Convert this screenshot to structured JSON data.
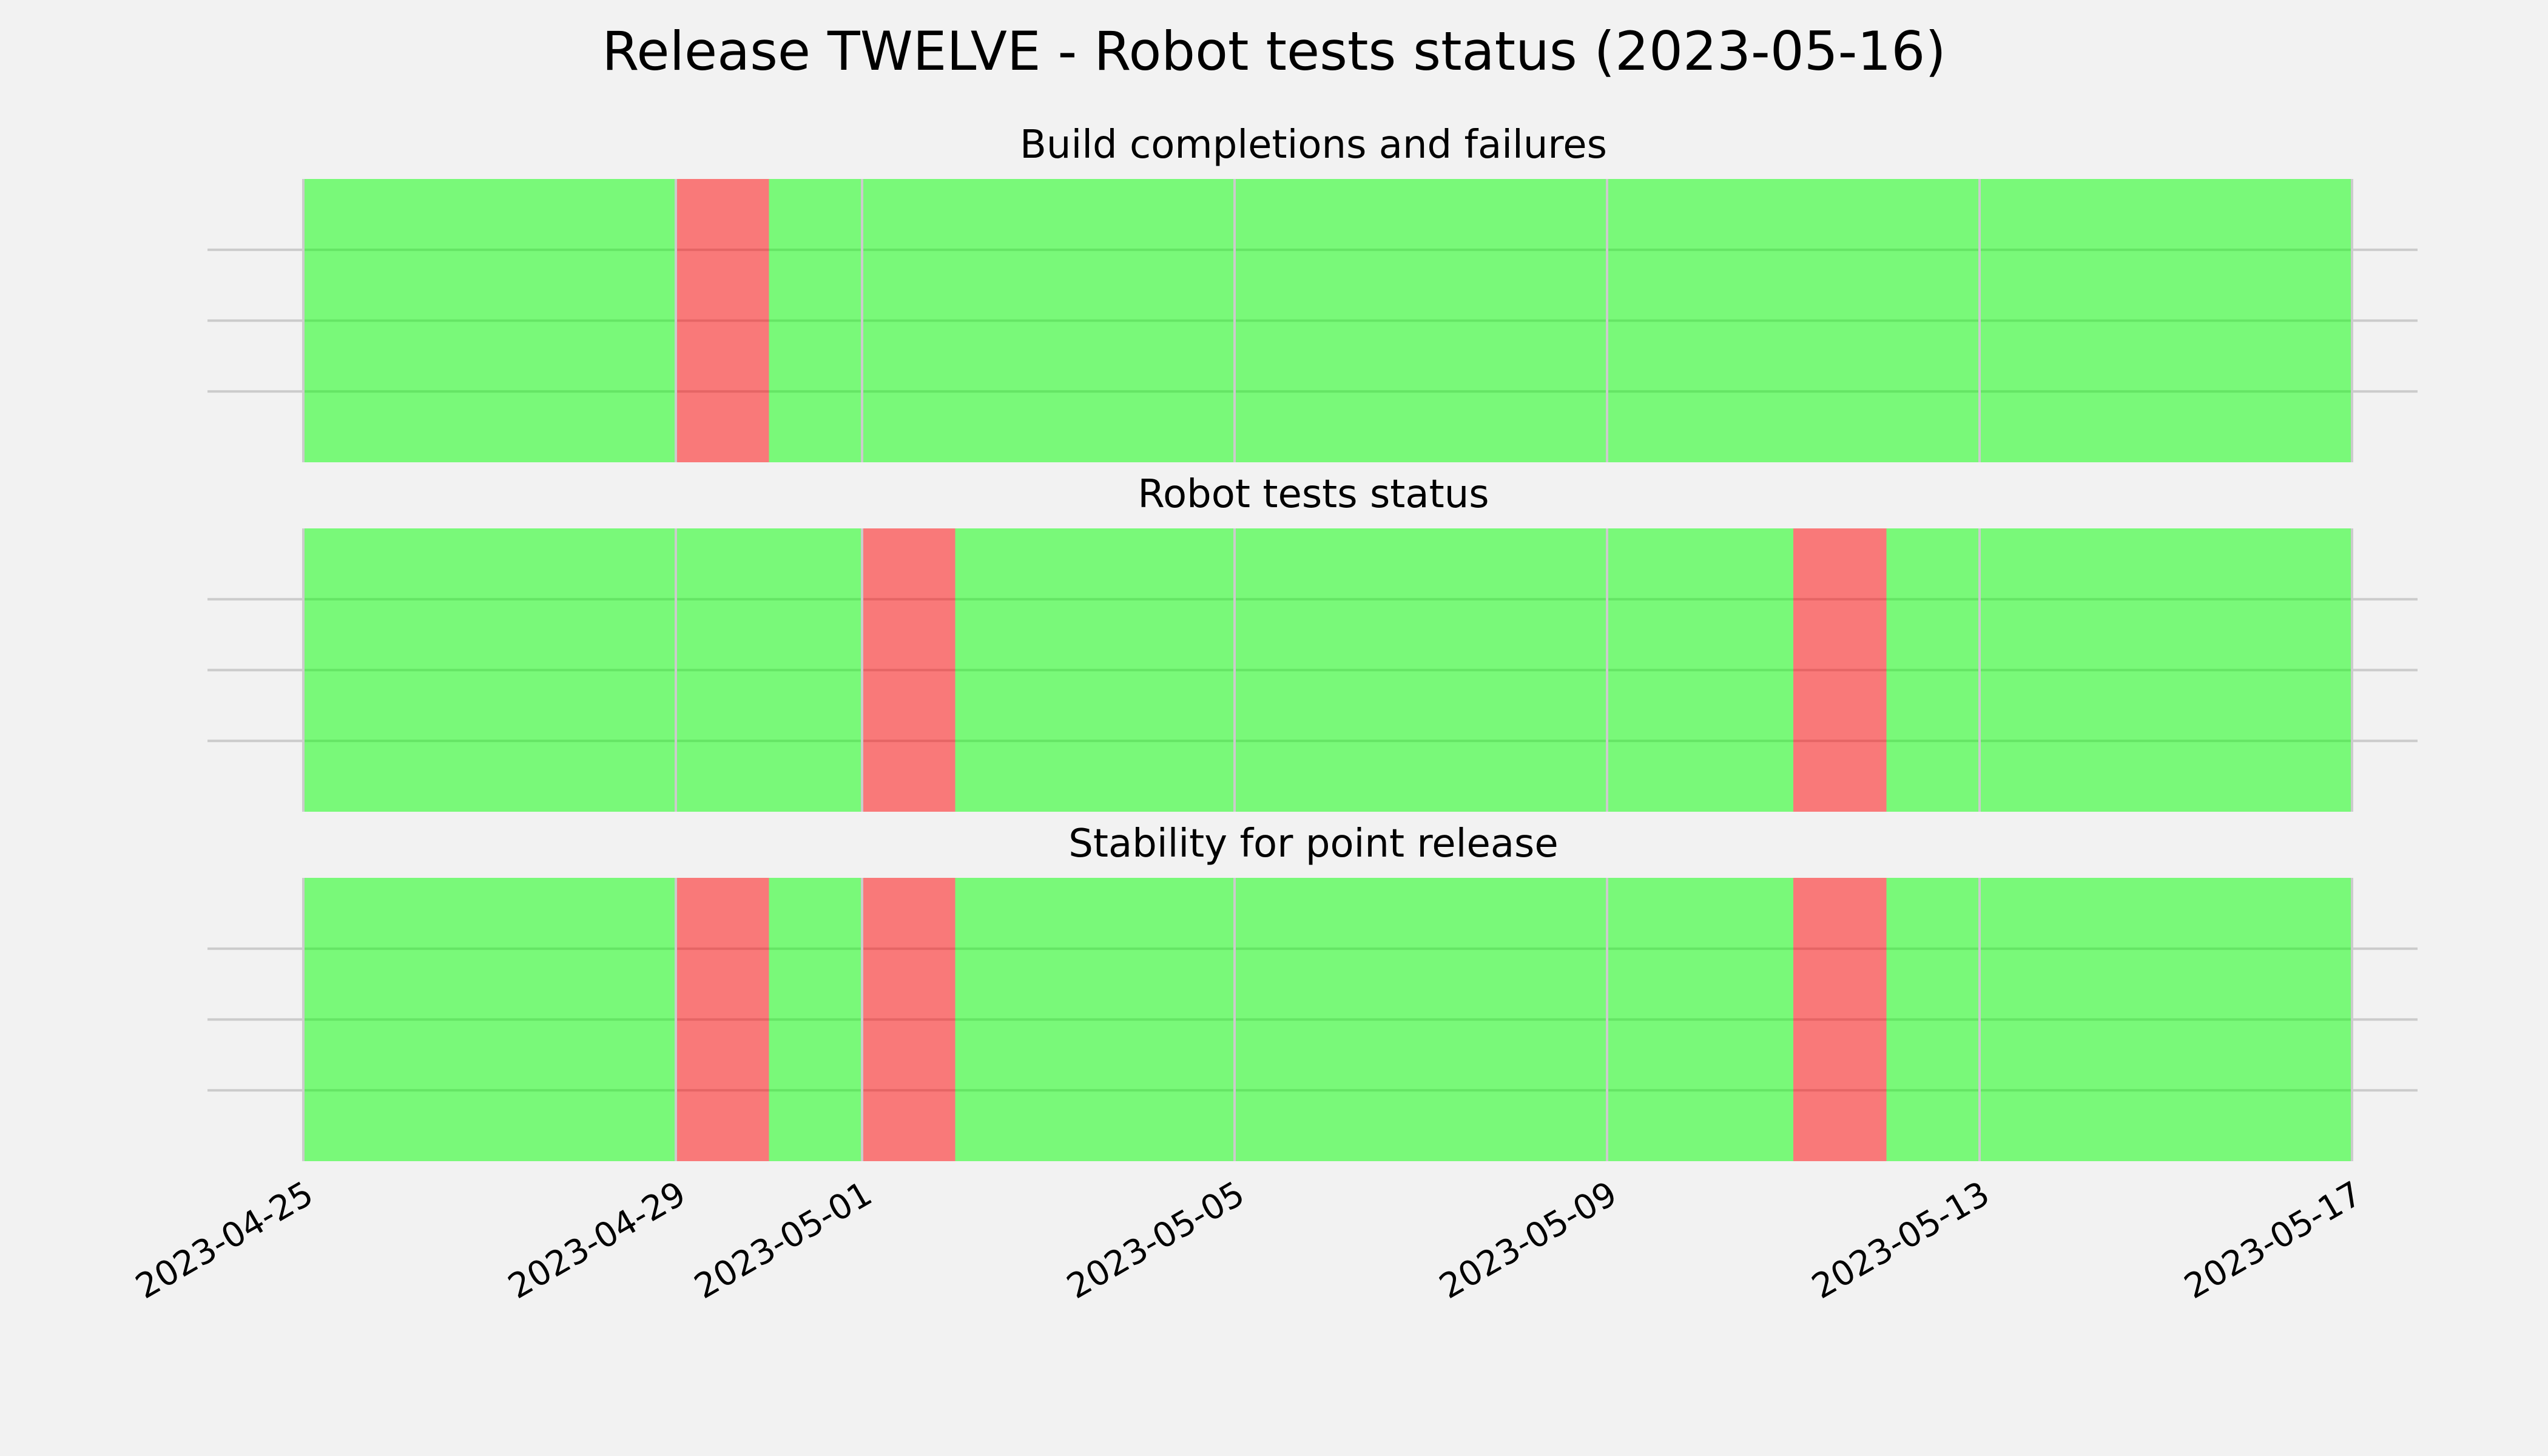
{
  "figure": {
    "title": "Release TWELVE - Robot tests status (2023-05-16)"
  },
  "colors": {
    "background": "#f2f2f2",
    "pass": "#00ff00",
    "fail": "#ff0000",
    "grid": "#cbcbcb"
  },
  "chart_data": [
    {
      "type": "bar",
      "title": "Build completions and failures",
      "x_type": "date",
      "xlim": [
        "2023-04-25",
        "2023-05-18"
      ],
      "grid": true,
      "days": [
        {
          "date": "2023-04-25",
          "status": "pass"
        },
        {
          "date": "2023-04-26",
          "status": "pass"
        },
        {
          "date": "2023-04-27",
          "status": "pass"
        },
        {
          "date": "2023-04-28",
          "status": "pass"
        },
        {
          "date": "2023-04-29",
          "status": "fail"
        },
        {
          "date": "2023-04-30",
          "status": "pass"
        },
        {
          "date": "2023-05-01",
          "status": "pass"
        },
        {
          "date": "2023-05-02",
          "status": "pass"
        },
        {
          "date": "2023-05-03",
          "status": "pass"
        },
        {
          "date": "2023-05-04",
          "status": "pass"
        },
        {
          "date": "2023-05-05",
          "status": "pass"
        },
        {
          "date": "2023-05-06",
          "status": "pass"
        },
        {
          "date": "2023-05-07",
          "status": "pass"
        },
        {
          "date": "2023-05-08",
          "status": "pass"
        },
        {
          "date": "2023-05-09",
          "status": "pass"
        },
        {
          "date": "2023-05-10",
          "status": "pass"
        },
        {
          "date": "2023-05-11",
          "status": "pass"
        },
        {
          "date": "2023-05-12",
          "status": "pass"
        },
        {
          "date": "2023-05-13",
          "status": "pass"
        },
        {
          "date": "2023-05-14",
          "status": "pass"
        },
        {
          "date": "2023-05-15",
          "status": "pass"
        },
        {
          "date": "2023-05-16",
          "status": "pass"
        }
      ]
    },
    {
      "type": "bar",
      "title": "Robot tests status",
      "x_type": "date",
      "xlim": [
        "2023-04-25",
        "2023-05-18"
      ],
      "grid": true,
      "days": [
        {
          "date": "2023-04-25",
          "status": "pass"
        },
        {
          "date": "2023-04-26",
          "status": "pass"
        },
        {
          "date": "2023-04-27",
          "status": "pass"
        },
        {
          "date": "2023-04-28",
          "status": "pass"
        },
        {
          "date": "2023-04-29",
          "status": "pass"
        },
        {
          "date": "2023-04-30",
          "status": "pass"
        },
        {
          "date": "2023-05-01",
          "status": "fail"
        },
        {
          "date": "2023-05-02",
          "status": "pass"
        },
        {
          "date": "2023-05-03",
          "status": "pass"
        },
        {
          "date": "2023-05-04",
          "status": "pass"
        },
        {
          "date": "2023-05-05",
          "status": "pass"
        },
        {
          "date": "2023-05-06",
          "status": "pass"
        },
        {
          "date": "2023-05-07",
          "status": "pass"
        },
        {
          "date": "2023-05-08",
          "status": "pass"
        },
        {
          "date": "2023-05-09",
          "status": "pass"
        },
        {
          "date": "2023-05-10",
          "status": "pass"
        },
        {
          "date": "2023-05-11",
          "status": "fail"
        },
        {
          "date": "2023-05-12",
          "status": "pass"
        },
        {
          "date": "2023-05-13",
          "status": "pass"
        },
        {
          "date": "2023-05-14",
          "status": "pass"
        },
        {
          "date": "2023-05-15",
          "status": "pass"
        },
        {
          "date": "2023-05-16",
          "status": "pass"
        }
      ]
    },
    {
      "type": "bar",
      "title": "Stability for point release",
      "x_type": "date",
      "xlim": [
        "2023-04-25",
        "2023-05-18"
      ],
      "grid": true,
      "xticks": [
        "2023-04-25",
        "2023-04-29",
        "2023-05-01",
        "2023-05-05",
        "2023-05-09",
        "2023-05-13",
        "2023-05-17"
      ],
      "days": [
        {
          "date": "2023-04-25",
          "status": "pass"
        },
        {
          "date": "2023-04-26",
          "status": "pass"
        },
        {
          "date": "2023-04-27",
          "status": "pass"
        },
        {
          "date": "2023-04-28",
          "status": "pass"
        },
        {
          "date": "2023-04-29",
          "status": "fail"
        },
        {
          "date": "2023-04-30",
          "status": "pass"
        },
        {
          "date": "2023-05-01",
          "status": "fail"
        },
        {
          "date": "2023-05-02",
          "status": "pass"
        },
        {
          "date": "2023-05-03",
          "status": "pass"
        },
        {
          "date": "2023-05-04",
          "status": "pass"
        },
        {
          "date": "2023-05-05",
          "status": "pass"
        },
        {
          "date": "2023-05-06",
          "status": "pass"
        },
        {
          "date": "2023-05-07",
          "status": "pass"
        },
        {
          "date": "2023-05-08",
          "status": "pass"
        },
        {
          "date": "2023-05-09",
          "status": "pass"
        },
        {
          "date": "2023-05-10",
          "status": "pass"
        },
        {
          "date": "2023-05-11",
          "status": "fail"
        },
        {
          "date": "2023-05-12",
          "status": "pass"
        },
        {
          "date": "2023-05-13",
          "status": "pass"
        },
        {
          "date": "2023-05-14",
          "status": "pass"
        },
        {
          "date": "2023-05-15",
          "status": "pass"
        },
        {
          "date": "2023-05-16",
          "status": "pass"
        }
      ]
    }
  ]
}
